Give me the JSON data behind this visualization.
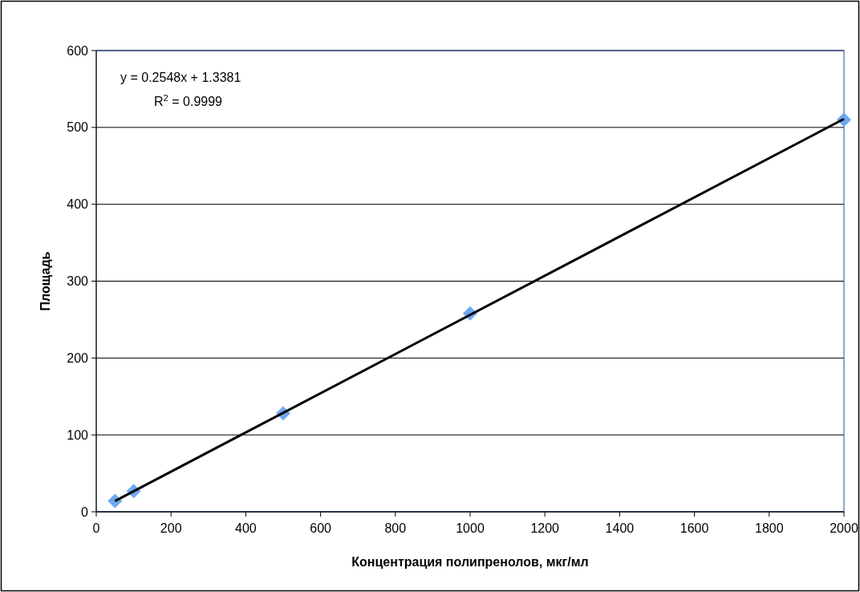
{
  "chart_data": {
    "type": "scatter",
    "xlabel": "Концентрация полипренолов, мкг/мл",
    "ylabel": "Площадь",
    "xlim": [
      0,
      2000
    ],
    "xticks": [
      0,
      200,
      400,
      600,
      800,
      1000,
      1200,
      1400,
      1600,
      1800,
      2000
    ],
    "ylim": [
      0,
      600
    ],
    "yticks": [
      0,
      100,
      200,
      300,
      400,
      500,
      600
    ],
    "grid": "y",
    "series": [
      {
        "marker": "diamond",
        "color": "#6fa8f0",
        "x": [
          50,
          100,
          500,
          1000,
          2000
        ],
        "values": [
          14,
          27,
          128,
          258,
          510
        ]
      },
      {
        "type": "line",
        "color": "#000000",
        "x": [
          50,
          2000
        ],
        "values": [
          14,
          511
        ]
      }
    ],
    "annotations": [
      "y = 0.2548x + 1.3381",
      "R$^{2}$ = 0.9999"
    ]
  }
}
